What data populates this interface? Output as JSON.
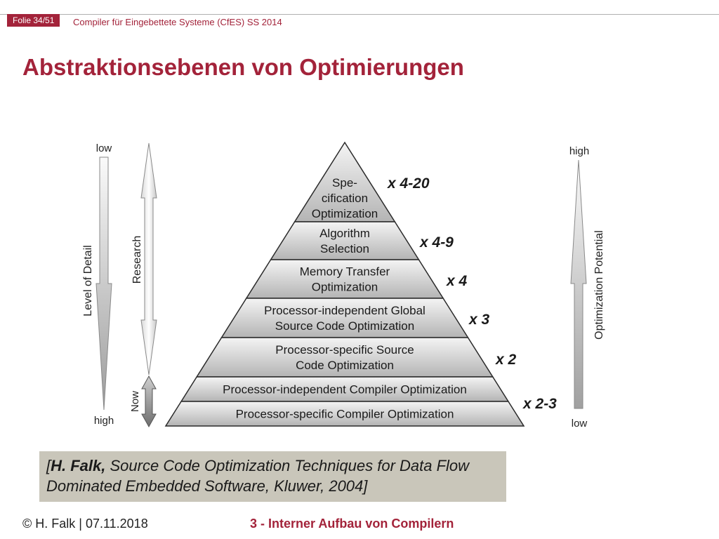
{
  "header": {
    "slide_number": "Folie 34/51",
    "course": "Compiler für Eingebettete Systeme (CfES) SS 2014"
  },
  "title": "Abstraktionsebenen von Optimierungen",
  "pyramid": {
    "levels": [
      {
        "label": [
          "Spe-",
          "cification",
          "Optimization"
        ],
        "factor": "x 4-20"
      },
      {
        "label": [
          "Algorithm",
          "Selection"
        ],
        "factor": "x 4-9"
      },
      {
        "label": [
          "Memory Transfer",
          "Optimization"
        ],
        "factor": "x 4"
      },
      {
        "label": [
          "Processor-independent Global",
          "Source Code Optimization"
        ],
        "factor": "x 3"
      },
      {
        "label": [
          "Processor-specific Source",
          "Code Optimization"
        ],
        "factor": "x 2"
      },
      {
        "label": [
          "Processor-independent Compiler Optimization"
        ],
        "factor": ""
      },
      {
        "label": [
          "Processor-specific Compiler Optimization"
        ],
        "factor": "x 2-3"
      }
    ]
  },
  "axes": {
    "detail": {
      "label": "Level of Detail",
      "top": "low",
      "bottom": "high"
    },
    "research": {
      "label": "Research",
      "now": "Now"
    },
    "potential": {
      "label": "Optimization Potential",
      "top": "high",
      "bottom": "low"
    }
  },
  "citation": {
    "author": "H. Falk,",
    "text": "Source Code Optimization Techniques for Data Flow Dominated Embedded Software, Kluwer, 2004]",
    "open_bracket": "["
  },
  "footer": {
    "left": "© H. Falk | 07.11.2018",
    "center": "3 - Interner Aufbau von Compilern"
  }
}
